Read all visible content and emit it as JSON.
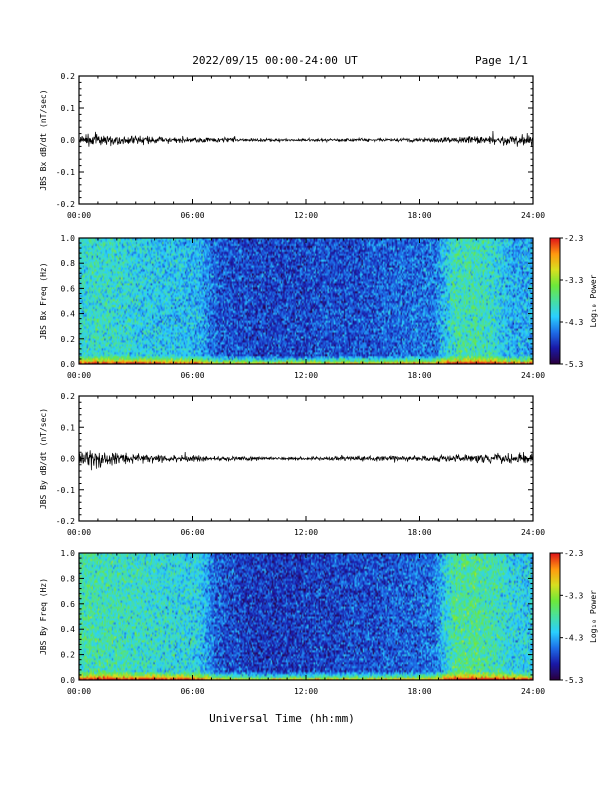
{
  "header": {
    "title": "2022/09/15  00:00-24:00 UT",
    "page": "Page 1/1"
  },
  "footer": {
    "xlabel": "Universal Time (hh:mm)"
  },
  "colors": {
    "trace": "#000000",
    "colormap": [
      "#2a0040",
      "#1a1aa8",
      "#1e6ee8",
      "#2ad0ff",
      "#48e0a0",
      "#6ee83a",
      "#d8e020",
      "#ff9a10",
      "#e01818"
    ]
  },
  "chart_data": [
    {
      "type": "line",
      "title": "",
      "ylabel": "JBS Bx dB/dt (nT/sec)",
      "xlabel": "",
      "xlim": [
        "00:00",
        "24:00"
      ],
      "ylim": [
        -0.2,
        0.2
      ],
      "x_ticks": [
        "00:00",
        "06:00",
        "12:00",
        "18:00",
        "24:00"
      ],
      "y_ticks": [
        "-0.2",
        "-0.1",
        "0.0",
        "0.1",
        "0.2"
      ],
      "series": [
        {
          "x_hours": [
            0,
            1,
            2,
            3,
            4,
            5,
            6,
            7,
            8,
            9,
            10,
            11,
            12,
            13,
            14,
            15,
            16,
            17,
            18,
            19,
            20,
            21,
            22,
            23,
            24
          ],
          "envelope": [
            0.022,
            0.03,
            0.02,
            0.017,
            0.016,
            0.013,
            0.012,
            0.012,
            0.009,
            0.007,
            0.006,
            0.005,
            0.005,
            0.005,
            0.006,
            0.006,
            0.006,
            0.007,
            0.008,
            0.012,
            0.014,
            0.015,
            0.016,
            0.02,
            0.024
          ]
        }
      ]
    },
    {
      "type": "heatmap",
      "title": "",
      "ylabel": "JBS Bx Freq (Hz)",
      "colorbar_label": "Log₁₀ Power",
      "xlim": [
        "00:00",
        "24:00"
      ],
      "ylim": [
        0.0,
        1.0
      ],
      "x_ticks": [
        "00:00",
        "06:00",
        "12:00",
        "18:00",
        "24:00"
      ],
      "y_ticks": [
        "0.0",
        "0.2",
        "0.4",
        "0.6",
        "0.8",
        "1.0"
      ],
      "colorbar_ticks": [
        "-2.3",
        "-3.3",
        "-4.3",
        "-5.3"
      ],
      "clim": [
        -5.3,
        -2.3
      ],
      "mean_log_power_by_hour": [
        -4.05,
        -3.95,
        -4.0,
        -4.1,
        -4.15,
        -4.2,
        -4.25,
        -4.65,
        -4.7,
        -4.75,
        -4.75,
        -4.75,
        -4.7,
        -4.7,
        -4.7,
        -4.65,
        -4.6,
        -4.55,
        -4.55,
        -3.9,
        -3.85,
        -4.0,
        -4.3,
        -4.3
      ]
    },
    {
      "type": "line",
      "title": "",
      "ylabel": "JBS By dB/dt (nT/sec)",
      "xlabel": "",
      "xlim": [
        "00:00",
        "24:00"
      ],
      "ylim": [
        -0.2,
        0.2
      ],
      "x_ticks": [
        "00:00",
        "06:00",
        "12:00",
        "18:00",
        "24:00"
      ],
      "y_ticks": [
        "-0.2",
        "-0.1",
        "0.0",
        "0.1",
        "0.2"
      ],
      "series": [
        {
          "x_hours": [
            0,
            1,
            2,
            3,
            4,
            5,
            6,
            7,
            8,
            9,
            10,
            11,
            12,
            13,
            14,
            15,
            16,
            17,
            18,
            19,
            20,
            21,
            22,
            23,
            24
          ],
          "envelope": [
            0.028,
            0.035,
            0.024,
            0.018,
            0.017,
            0.014,
            0.013,
            0.012,
            0.01,
            0.008,
            0.007,
            0.007,
            0.007,
            0.008,
            0.009,
            0.01,
            0.011,
            0.012,
            0.012,
            0.016,
            0.017,
            0.017,
            0.019,
            0.024,
            0.028
          ]
        }
      ]
    },
    {
      "type": "heatmap",
      "title": "",
      "ylabel": "JBS By Freq (Hz)",
      "colorbar_label": "Log₁₀ Power",
      "xlim": [
        "00:00",
        "24:00"
      ],
      "ylim": [
        0.0,
        1.0
      ],
      "x_ticks": [
        "00:00",
        "06:00",
        "12:00",
        "18:00",
        "24:00"
      ],
      "y_ticks": [
        "0.0",
        "0.2",
        "0.4",
        "0.6",
        "0.8",
        "1.0"
      ],
      "colorbar_ticks": [
        "-2.3",
        "-3.3",
        "-4.3",
        "-5.3"
      ],
      "clim": [
        -5.3,
        -2.3
      ],
      "mean_log_power_by_hour": [
        -3.85,
        -3.85,
        -3.9,
        -3.95,
        -4.0,
        -4.05,
        -4.1,
        -4.65,
        -4.75,
        -4.8,
        -4.8,
        -4.8,
        -4.75,
        -4.75,
        -4.7,
        -4.7,
        -4.65,
        -4.6,
        -4.55,
        -3.8,
        -3.75,
        -3.85,
        -4.1,
        -4.15
      ]
    }
  ]
}
